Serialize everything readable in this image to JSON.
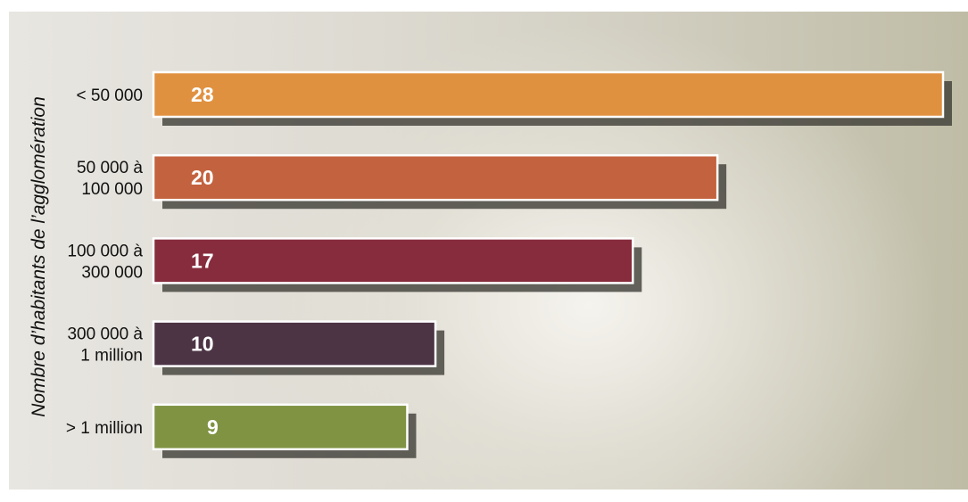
{
  "chart_data": {
    "type": "bar",
    "orientation": "horizontal",
    "ylabel": "Nombre d’habitants de l’agglomération",
    "categories": [
      [
        "< 50 000"
      ],
      [
        "50 000 à",
        "100 000"
      ],
      [
        "100 000 à",
        "300 000"
      ],
      [
        "300 000 à",
        "1 million"
      ],
      [
        "> 1 million"
      ]
    ],
    "values": [
      28,
      20,
      17,
      10,
      9
    ],
    "value_labels": [
      "28",
      "20",
      "17",
      "10",
      "9"
    ],
    "colors": [
      "#e09140",
      "#c3623e",
      "#862c3d",
      "#4c3445",
      "#7f9343"
    ],
    "xlim": [
      0,
      28
    ],
    "grid": false
  }
}
